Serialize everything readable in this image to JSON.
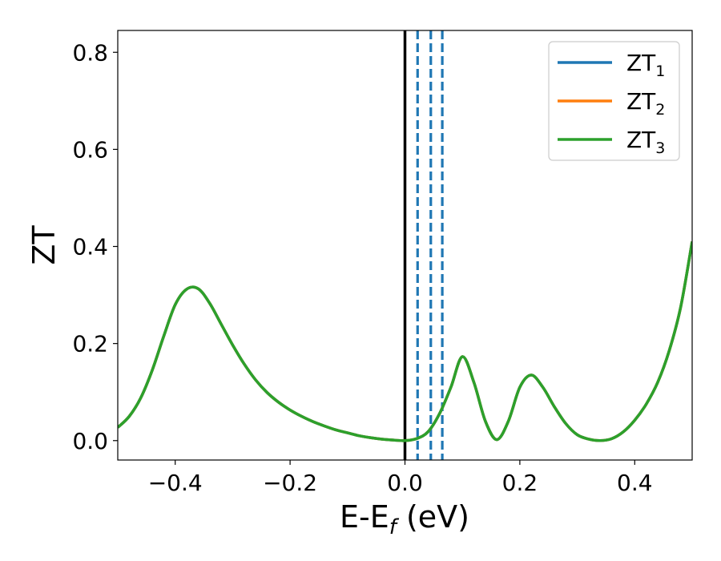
{
  "chart_data": {
    "type": "line",
    "xlabel": "E-E",
    "xlabel_sub": "f",
    "xlabel_unit": " (eV)",
    "ylabel": "ZT",
    "xlim": [
      -0.5,
      0.5
    ],
    "ylim": [
      -0.04,
      0.845
    ],
    "xticks": [
      -0.4,
      -0.2,
      0.0,
      0.2,
      0.4
    ],
    "xtick_labels": [
      "−0.4",
      "−0.2",
      "0.0",
      "0.2",
      "0.4"
    ],
    "yticks": [
      0.0,
      0.2,
      0.4,
      0.6,
      0.8
    ],
    "ytick_labels": [
      "0.0",
      "0.2",
      "0.4",
      "0.6",
      "0.8"
    ],
    "legend_position": "top-right",
    "grid": false,
    "x": [
      -0.5,
      -0.48,
      -0.46,
      -0.44,
      -0.42,
      -0.4,
      -0.38,
      -0.36,
      -0.34,
      -0.32,
      -0.3,
      -0.28,
      -0.26,
      -0.24,
      -0.22,
      -0.2,
      -0.18,
      -0.16,
      -0.14,
      -0.12,
      -0.1,
      -0.08,
      -0.06,
      -0.04,
      -0.02,
      0.0,
      0.02,
      0.04,
      0.06,
      0.08,
      0.1,
      0.12,
      0.14,
      0.16,
      0.18,
      0.2,
      0.22,
      0.24,
      0.26,
      0.28,
      0.3,
      0.32,
      0.34,
      0.36,
      0.38,
      0.4,
      0.42,
      0.44,
      0.46,
      0.48,
      0.5
    ],
    "series": [
      {
        "name": "ZT",
        "sub": "1",
        "color": "#1f77b4",
        "values": [
          0.027,
          0.05,
          0.088,
          0.145,
          0.215,
          0.28,
          0.312,
          0.313,
          0.283,
          0.24,
          0.197,
          0.158,
          0.125,
          0.099,
          0.079,
          0.063,
          0.05,
          0.039,
          0.03,
          0.022,
          0.016,
          0.01,
          0.006,
          0.003,
          0.001,
          0.0,
          0.004,
          0.018,
          0.055,
          0.11,
          0.173,
          0.12,
          0.04,
          0.002,
          0.04,
          0.11,
          0.135,
          0.11,
          0.07,
          0.035,
          0.012,
          0.003,
          0.0,
          0.004,
          0.018,
          0.042,
          0.075,
          0.12,
          0.185,
          0.275,
          0.41
        ]
      },
      {
        "name": "ZT",
        "sub": "2",
        "color": "#ff7f0e",
        "values": [
          0.027,
          0.05,
          0.088,
          0.145,
          0.215,
          0.28,
          0.312,
          0.313,
          0.283,
          0.24,
          0.197,
          0.158,
          0.125,
          0.099,
          0.079,
          0.063,
          0.05,
          0.039,
          0.03,
          0.022,
          0.016,
          0.01,
          0.006,
          0.003,
          0.001,
          0.0,
          0.004,
          0.018,
          0.055,
          0.11,
          0.173,
          0.12,
          0.04,
          0.002,
          0.04,
          0.11,
          0.135,
          0.11,
          0.07,
          0.035,
          0.012,
          0.003,
          0.0,
          0.004,
          0.018,
          0.042,
          0.075,
          0.12,
          0.185,
          0.275,
          0.41
        ]
      },
      {
        "name": "ZT",
        "sub": "3",
        "color": "#2ca02c",
        "values": [
          0.027,
          0.05,
          0.088,
          0.145,
          0.215,
          0.28,
          0.312,
          0.313,
          0.283,
          0.24,
          0.197,
          0.158,
          0.125,
          0.099,
          0.079,
          0.063,
          0.05,
          0.039,
          0.03,
          0.022,
          0.016,
          0.01,
          0.006,
          0.003,
          0.001,
          0.0,
          0.004,
          0.018,
          0.055,
          0.11,
          0.173,
          0.12,
          0.04,
          0.002,
          0.04,
          0.11,
          0.135,
          0.11,
          0.07,
          0.035,
          0.012,
          0.003,
          0.0,
          0.004,
          0.018,
          0.042,
          0.075,
          0.12,
          0.185,
          0.275,
          0.41
        ]
      }
    ],
    "vlines": [
      {
        "x": 0.0,
        "style": "solid",
        "color": "#000000"
      },
      {
        "x": 0.022,
        "style": "dashed",
        "color": "#1f77b4"
      },
      {
        "x": 0.045,
        "style": "dashed",
        "color": "#1f77b4"
      },
      {
        "x": 0.065,
        "style": "dashed",
        "color": "#1f77b4"
      }
    ]
  }
}
